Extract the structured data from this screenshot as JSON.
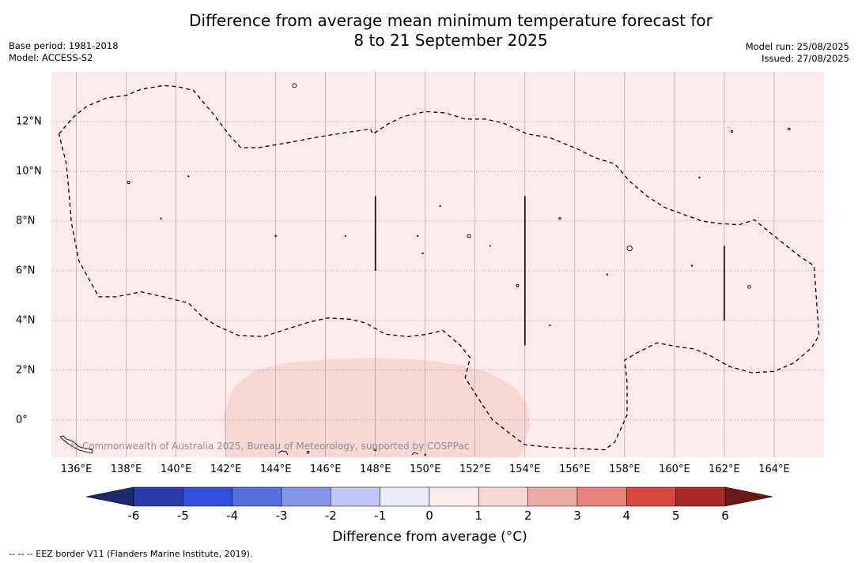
{
  "title": {
    "line1": "Difference from average mean minimum temperature forecast for",
    "line2": "8 to 21 September 2025"
  },
  "meta_left": {
    "base_period": "Base period: 1981-2018",
    "model": "Model: ACCESS-S2"
  },
  "meta_right": {
    "model_run": "Model run: 25/08/2025",
    "issued": "Issued: 27/08/2025"
  },
  "map": {
    "lon_range": [
      135,
      166
    ],
    "lat_range": [
      -1.5,
      14
    ],
    "x_ticks": [
      "136°E",
      "138°E",
      "140°E",
      "142°E",
      "144°E",
      "146°E",
      "148°E",
      "150°E",
      "152°E",
      "154°E",
      "156°E",
      "158°E",
      "160°E",
      "162°E",
      "164°E"
    ],
    "x_tick_values": [
      136,
      138,
      140,
      142,
      144,
      146,
      148,
      150,
      152,
      154,
      156,
      158,
      160,
      162,
      164
    ],
    "y_ticks": [
      "12°N",
      "10°N",
      "8°N",
      "6°N",
      "4°N",
      "2°N",
      "0°"
    ],
    "y_tick_values": [
      12,
      10,
      8,
      6,
      4,
      2,
      0
    ],
    "background_anomaly_class": "0 to 1",
    "patch_anomaly_class": "1 to 2",
    "colors": {
      "background": "#fcebea",
      "patch": "#f6d7d4",
      "grid": "#999999"
    },
    "copyright": "© Commonwealth of Australia 2025, Bureau of Meteorology, supported by COSPPac"
  },
  "colorbar": {
    "title": "Difference from average (°C)",
    "ticks": [
      "-6",
      "-5",
      "-4",
      "-3",
      "-2",
      "-1",
      "0",
      "1",
      "2",
      "3",
      "4",
      "5",
      "6"
    ],
    "tick_values": [
      -6,
      -5,
      -4,
      -3,
      -2,
      -1,
      0,
      1,
      2,
      3,
      4,
      5,
      6
    ],
    "under_color": "#1d2a6f",
    "over_color": "#6d1717",
    "colors": [
      "#2a3caa",
      "#3050dd",
      "#5670e2",
      "#8496ea",
      "#bfc7f4",
      "#e8ebfb",
      "#fcebea",
      "#f6d7d4",
      "#eca9a5",
      "#e5827c",
      "#d9473e",
      "#aa2a27"
    ]
  },
  "footer": "--  --  -- EEZ border V11 (Flanders Marine Institute, 2019)."
}
